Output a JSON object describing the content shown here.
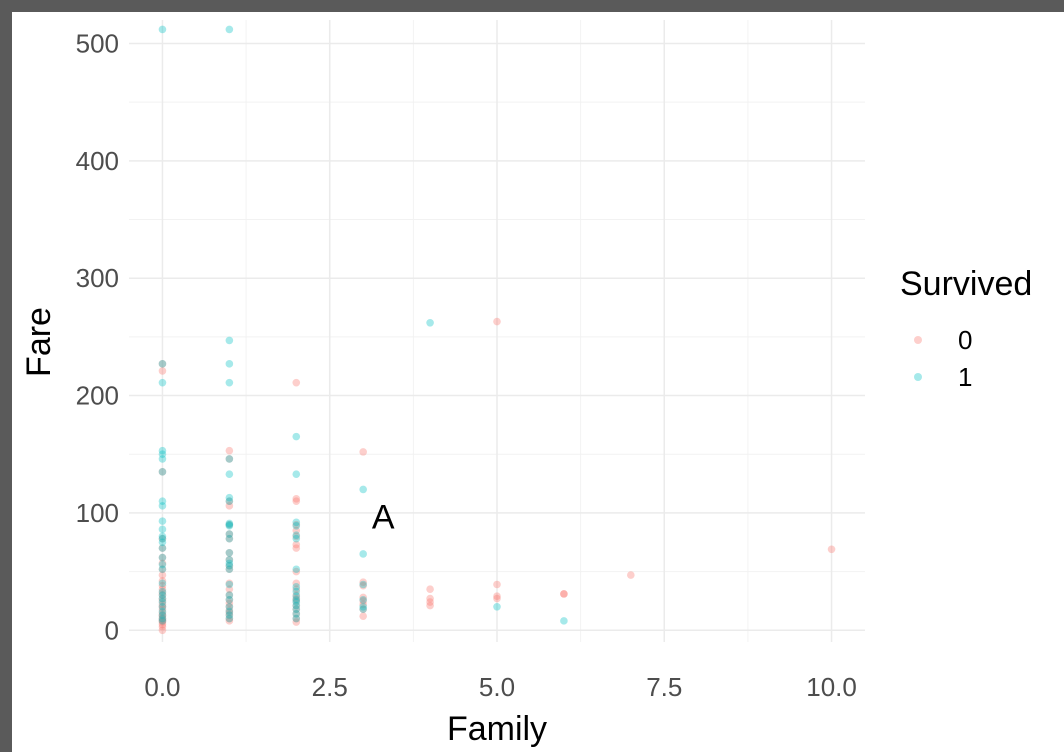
{
  "chart_data": {
    "type": "scatter",
    "xlabel": "Family",
    "ylabel": "Fare",
    "xlim": [
      -0.5,
      10.5
    ],
    "ylim": [
      -10,
      520
    ],
    "x_ticks": [
      0,
      2.5,
      5,
      7.5,
      10
    ],
    "x_tick_labels": [
      "0.0",
      "2.5",
      "5.0",
      "7.5",
      "10.0"
    ],
    "y_ticks": [
      0,
      100,
      200,
      300,
      400,
      500
    ],
    "y_tick_labels": [
      "0",
      "100",
      "200",
      "300",
      "400",
      "500"
    ],
    "grid": true,
    "legend": {
      "title": "Survived",
      "placement": "right",
      "entries": [
        "0",
        "1"
      ]
    },
    "annotation": {
      "text": "A",
      "x": 3.3,
      "y": 97
    },
    "series": [
      {
        "name": "0",
        "color": "#F8766D",
        "points": [
          [
            0,
            0
          ],
          [
            0,
            3
          ],
          [
            0,
            5
          ],
          [
            0,
            7
          ],
          [
            0,
            8
          ],
          [
            0,
            9
          ],
          [
            0,
            10
          ],
          [
            0,
            12
          ],
          [
            0,
            13
          ],
          [
            0,
            15
          ],
          [
            0,
            18
          ],
          [
            0,
            20
          ],
          [
            0,
            22
          ],
          [
            0,
            25
          ],
          [
            0,
            27
          ],
          [
            0,
            30
          ],
          [
            0,
            32
          ],
          [
            0,
            35
          ],
          [
            0,
            38
          ],
          [
            0,
            42
          ],
          [
            0,
            47
          ],
          [
            0,
            52
          ],
          [
            0,
            57
          ],
          [
            0,
            62
          ],
          [
            0,
            70
          ],
          [
            0,
            78
          ],
          [
            0,
            135
          ],
          [
            0,
            221
          ],
          [
            0,
            227
          ],
          [
            1,
            8
          ],
          [
            1,
            10
          ],
          [
            1,
            13
          ],
          [
            1,
            15
          ],
          [
            1,
            17
          ],
          [
            1,
            20
          ],
          [
            1,
            23
          ],
          [
            1,
            26
          ],
          [
            1,
            30
          ],
          [
            1,
            35
          ],
          [
            1,
            40
          ],
          [
            1,
            52
          ],
          [
            1,
            55
          ],
          [
            1,
            60
          ],
          [
            1,
            66
          ],
          [
            1,
            78
          ],
          [
            1,
            82
          ],
          [
            1,
            90
          ],
          [
            1,
            106
          ],
          [
            1,
            110
          ],
          [
            1,
            146
          ],
          [
            1,
            153
          ],
          [
            2,
            7
          ],
          [
            2,
            10
          ],
          [
            2,
            14
          ],
          [
            2,
            18
          ],
          [
            2,
            21
          ],
          [
            2,
            25
          ],
          [
            2,
            27
          ],
          [
            2,
            30
          ],
          [
            2,
            35
          ],
          [
            2,
            40
          ],
          [
            2,
            50
          ],
          [
            2,
            70
          ],
          [
            2,
            73
          ],
          [
            2,
            80
          ],
          [
            2,
            85
          ],
          [
            2,
            90
          ],
          [
            2,
            110
          ],
          [
            2,
            112
          ],
          [
            2,
            211
          ],
          [
            3,
            12
          ],
          [
            3,
            18
          ],
          [
            3,
            22
          ],
          [
            3,
            25
          ],
          [
            3,
            28
          ],
          [
            3,
            38
          ],
          [
            3,
            41
          ],
          [
            3,
            152
          ],
          [
            4,
            21
          ],
          [
            4,
            24
          ],
          [
            4,
            27
          ],
          [
            4,
            35
          ],
          [
            5,
            27
          ],
          [
            5,
            29
          ],
          [
            5,
            39
          ],
          [
            5,
            263
          ],
          [
            6,
            31
          ],
          [
            6,
            31
          ],
          [
            7,
            47
          ],
          [
            10,
            69
          ]
        ]
      },
      {
        "name": "1",
        "color": "#00BFC4",
        "points": [
          [
            0,
            8
          ],
          [
            0,
            10
          ],
          [
            0,
            13
          ],
          [
            0,
            16
          ],
          [
            0,
            20
          ],
          [
            0,
            24
          ],
          [
            0,
            27
          ],
          [
            0,
            30
          ],
          [
            0,
            33
          ],
          [
            0,
            40
          ],
          [
            0,
            52
          ],
          [
            0,
            56
          ],
          [
            0,
            62
          ],
          [
            0,
            70
          ],
          [
            0,
            75
          ],
          [
            0,
            78
          ],
          [
            0,
            80
          ],
          [
            0,
            86
          ],
          [
            0,
            93
          ],
          [
            0,
            106
          ],
          [
            0,
            110
          ],
          [
            0,
            135
          ],
          [
            0,
            146
          ],
          [
            0,
            150
          ],
          [
            0,
            153
          ],
          [
            0,
            211
          ],
          [
            0,
            227
          ],
          [
            0,
            512
          ],
          [
            1,
            10
          ],
          [
            1,
            13
          ],
          [
            1,
            16
          ],
          [
            1,
            20
          ],
          [
            1,
            26
          ],
          [
            1,
            30
          ],
          [
            1,
            39
          ],
          [
            1,
            52
          ],
          [
            1,
            55
          ],
          [
            1,
            57
          ],
          [
            1,
            60
          ],
          [
            1,
            66
          ],
          [
            1,
            78
          ],
          [
            1,
            82
          ],
          [
            1,
            89
          ],
          [
            1,
            90
          ],
          [
            1,
            91
          ],
          [
            1,
            110
          ],
          [
            1,
            113
          ],
          [
            1,
            133
          ],
          [
            1,
            146
          ],
          [
            1,
            211
          ],
          [
            1,
            227
          ],
          [
            1,
            247
          ],
          [
            1,
            512
          ],
          [
            2,
            10
          ],
          [
            2,
            14
          ],
          [
            2,
            18
          ],
          [
            2,
            21
          ],
          [
            2,
            24
          ],
          [
            2,
            26
          ],
          [
            2,
            29
          ],
          [
            2,
            33
          ],
          [
            2,
            37
          ],
          [
            2,
            52
          ],
          [
            2,
            78
          ],
          [
            2,
            81
          ],
          [
            2,
            89
          ],
          [
            2,
            92
          ],
          [
            2,
            133
          ],
          [
            2,
            165
          ],
          [
            3,
            18
          ],
          [
            3,
            20
          ],
          [
            3,
            26
          ],
          [
            3,
            39
          ],
          [
            3,
            65
          ],
          [
            3,
            120
          ],
          [
            4,
            262
          ],
          [
            5,
            20
          ],
          [
            6,
            8
          ]
        ]
      }
    ]
  }
}
